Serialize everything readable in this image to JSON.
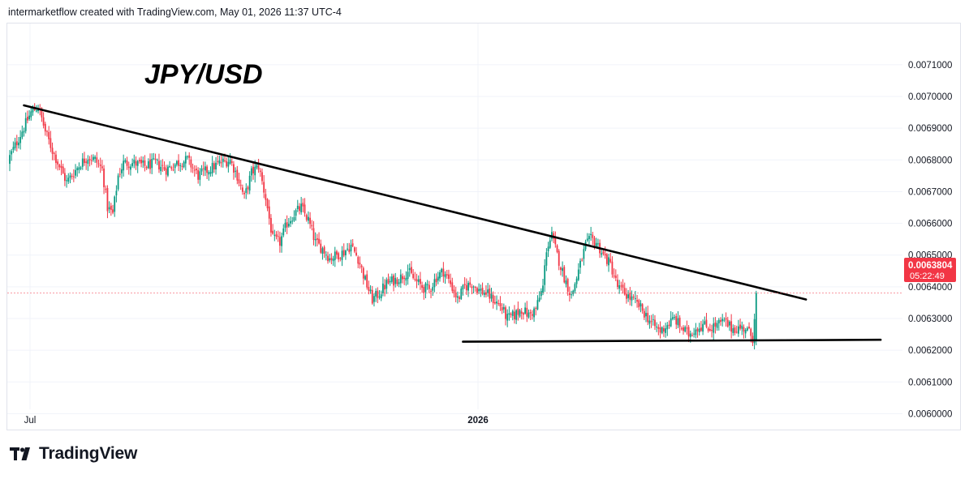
{
  "header": {
    "attribution": "intermarketflow created with TradingView.com, May 01, 2026 11:37 UTC-4"
  },
  "logo": {
    "text": "TradingView"
  },
  "colors": {
    "up": "#089981",
    "down": "#f23645",
    "trendline": "#000000",
    "axis_text": "#131722",
    "grid": "#f0f3fa"
  },
  "chart_data": {
    "type": "candlestick",
    "title": "JPY/USD",
    "x_ticks": [
      "Jul",
      "2026"
    ],
    "y_ticks": [
      "0.0071000",
      "0.0070000",
      "0.0069000",
      "0.0068000",
      "0.0067000",
      "0.0066000",
      "0.0065000",
      "0.0064000",
      "0.0063000",
      "0.0062000",
      "0.0061000",
      "0.0060000"
    ],
    "ylim": [
      0.00595,
      0.00723
    ],
    "last_price": {
      "value": "0.0063804",
      "countdown": "05:22:49"
    },
    "approx_close_path": [
      [
        0,
        0.00681
      ],
      [
        6,
        0.00688
      ],
      [
        12,
        0.00695
      ],
      [
        16,
        0.00697
      ],
      [
        20,
        0.00689
      ],
      [
        24,
        0.00683
      ],
      [
        28,
        0.00678
      ],
      [
        32,
        0.00673
      ],
      [
        36,
        0.00676
      ],
      [
        40,
        0.00679
      ],
      [
        44,
        0.00681
      ],
      [
        48,
        0.0068
      ],
      [
        52,
        0.00677
      ],
      [
        55,
        0.00665
      ],
      [
        58,
        0.00663
      ],
      [
        61,
        0.00675
      ],
      [
        64,
        0.00679
      ],
      [
        70,
        0.00679
      ],
      [
        76,
        0.00678
      ],
      [
        82,
        0.00679
      ],
      [
        88,
        0.00677
      ],
      [
        94,
        0.00679
      ],
      [
        100,
        0.0068
      ],
      [
        106,
        0.00675
      ],
      [
        112,
        0.00677
      ],
      [
        118,
        0.00679
      ],
      [
        124,
        0.0068
      ],
      [
        128,
        0.00675
      ],
      [
        132,
        0.00668
      ],
      [
        136,
        0.00676
      ],
      [
        140,
        0.00678
      ],
      [
        144,
        0.00668
      ],
      [
        148,
        0.00655
      ],
      [
        152,
        0.00654
      ],
      [
        156,
        0.0066
      ],
      [
        160,
        0.00663
      ],
      [
        164,
        0.00665
      ],
      [
        168,
        0.00661
      ],
      [
        172,
        0.00654
      ],
      [
        176,
        0.00652
      ],
      [
        180,
        0.00649
      ],
      [
        184,
        0.0065
      ],
      [
        188,
        0.00651
      ],
      [
        192,
        0.00653
      ],
      [
        196,
        0.00649
      ],
      [
        200,
        0.00642
      ],
      [
        204,
        0.00636
      ],
      [
        208,
        0.00638
      ],
      [
        212,
        0.00641
      ],
      [
        216,
        0.00642
      ],
      [
        220,
        0.00643
      ],
      [
        224,
        0.00645
      ],
      [
        228,
        0.00642
      ],
      [
        232,
        0.0064
      ],
      [
        236,
        0.00639
      ],
      [
        240,
        0.00643
      ],
      [
        244,
        0.00645
      ],
      [
        248,
        0.00641
      ],
      [
        252,
        0.00636
      ],
      [
        256,
        0.0064
      ],
      [
        260,
        0.00641
      ],
      [
        264,
        0.00639
      ],
      [
        268,
        0.00638
      ],
      [
        272,
        0.00636
      ],
      [
        276,
        0.00634
      ],
      [
        280,
        0.0063
      ],
      [
        284,
        0.00631
      ],
      [
        288,
        0.00633
      ],
      [
        292,
        0.00631
      ],
      [
        296,
        0.00633
      ],
      [
        300,
        0.0064
      ],
      [
        302,
        0.00652
      ],
      [
        305,
        0.00656
      ],
      [
        308,
        0.0065
      ],
      [
        312,
        0.00643
      ],
      [
        316,
        0.00637
      ],
      [
        320,
        0.00645
      ],
      [
        324,
        0.00653
      ],
      [
        327,
        0.00655
      ],
      [
        330,
        0.00654
      ],
      [
        334,
        0.0065
      ],
      [
        338,
        0.00647
      ],
      [
        342,
        0.0064
      ],
      [
        346,
        0.00638
      ],
      [
        350,
        0.00636
      ],
      [
        354,
        0.00634
      ],
      [
        358,
        0.00631
      ],
      [
        362,
        0.00628
      ],
      [
        366,
        0.00626
      ],
      [
        370,
        0.00628
      ],
      [
        374,
        0.0063
      ],
      [
        378,
        0.00627
      ],
      [
        382,
        0.00625
      ],
      [
        386,
        0.00627
      ],
      [
        390,
        0.00628
      ],
      [
        394,
        0.00627
      ],
      [
        398,
        0.00628
      ],
      [
        402,
        0.00629
      ],
      [
        406,
        0.00627
      ],
      [
        410,
        0.00627
      ],
      [
        414,
        0.00627
      ],
      [
        418,
        0.00624
      ],
      [
        420,
        0.00638
      ]
    ],
    "annotations": [
      {
        "type": "trendline",
        "from": [
          8,
          0.006972
        ],
        "to": [
          448,
          0.00636
        ]
      },
      {
        "type": "trendline",
        "from": [
          255,
          0.006227
        ],
        "to": [
          490,
          0.006233
        ]
      }
    ]
  }
}
